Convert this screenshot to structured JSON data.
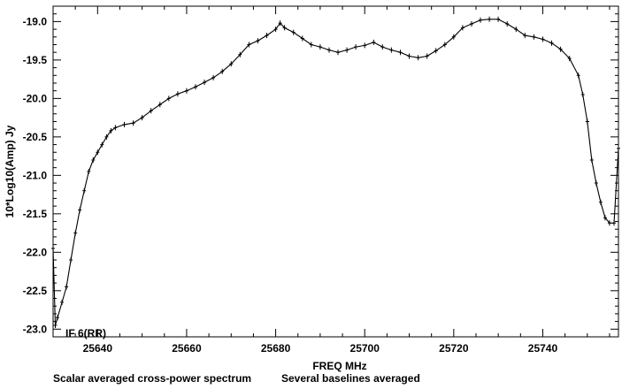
{
  "chart_data": {
    "type": "line",
    "xlabel": "FREQ   MHz",
    "ylabel": "10*Log10(Amp) Jy",
    "xlim": [
      25630,
      25757
    ],
    "ylim": [
      -23.1,
      -18.8
    ],
    "xticks": [
      25640,
      25660,
      25680,
      25700,
      25720,
      25740
    ],
    "yticks": [
      -19.0,
      -19.5,
      -20.0,
      -20.5,
      -21.0,
      -21.5,
      -22.0,
      -22.5,
      -23.0
    ],
    "tick_labels_x": [
      "25640",
      "25660",
      "25680",
      "25700",
      "25720",
      "25740"
    ],
    "tick_labels_y": [
      "-19.0",
      "-19.5",
      "-20.0",
      "-20.5",
      "-21.0",
      "-21.5",
      "-22.0",
      "-22.5",
      "-23.0"
    ],
    "grid": false,
    "annotation": "IF 6(RR)",
    "footer_left": "Scalar averaged cross-power spectrum",
    "footer_right": "Several baselines averaged",
    "series": [
      {
        "x": [
          25630.0,
          25630.5,
          25631.0,
          25632.0,
          25633.0,
          25634.0,
          25635.0,
          25636.0,
          25637.0,
          25638.0,
          25639.0,
          25640.0,
          25641.0,
          25642.0,
          25643.0,
          25644.0,
          25646.0,
          25648.0,
          25650.0,
          25652.0,
          25654.0,
          25656.0,
          25658.0,
          25660.0,
          25662.0,
          25664.0,
          25666.0,
          25668.0,
          25670.0,
          25672.0,
          25674.0,
          25676.0,
          25678.0,
          25680.0,
          25681.0,
          25682.0,
          25684.0,
          25686.0,
          25688.0,
          25690.0,
          25692.0,
          25694.0,
          25696.0,
          25698.0,
          25700.0,
          25702.0,
          25704.0,
          25706.0,
          25708.0,
          25710.0,
          25712.0,
          25714.0,
          25716.0,
          25718.0,
          25720.0,
          25722.0,
          25724.0,
          25726.0,
          25728.0,
          25730.0,
          25732.0,
          25734.0,
          25736.0,
          25738.0,
          25740.0,
          25742.0,
          25744.0,
          25746.0,
          25748.0,
          25749.0,
          25750.0,
          25751.0,
          25752.0,
          25753.0,
          25754.0,
          25755.0,
          25756.0,
          25757.0
        ],
        "y": [
          -21.95,
          -22.95,
          -22.85,
          -22.65,
          -22.45,
          -22.1,
          -21.75,
          -21.45,
          -21.2,
          -20.95,
          -20.8,
          -20.7,
          -20.6,
          -20.5,
          -20.42,
          -20.38,
          -20.34,
          -20.32,
          -20.25,
          -20.16,
          -20.08,
          -20.0,
          -19.94,
          -19.9,
          -19.85,
          -19.79,
          -19.73,
          -19.65,
          -19.55,
          -19.43,
          -19.3,
          -19.25,
          -19.18,
          -19.1,
          -19.02,
          -19.08,
          -19.14,
          -19.22,
          -19.3,
          -19.33,
          -19.37,
          -19.4,
          -19.37,
          -19.33,
          -19.31,
          -19.27,
          -19.33,
          -19.37,
          -19.4,
          -19.45,
          -19.47,
          -19.45,
          -19.38,
          -19.3,
          -19.2,
          -19.08,
          -19.03,
          -18.98,
          -18.97,
          -18.97,
          -19.03,
          -19.1,
          -19.18,
          -19.2,
          -19.23,
          -19.28,
          -19.36,
          -19.48,
          -19.7,
          -19.95,
          -20.3,
          -20.8,
          -21.1,
          -21.35,
          -21.55,
          -21.62,
          -21.62,
          -20.65
        ]
      }
    ]
  }
}
